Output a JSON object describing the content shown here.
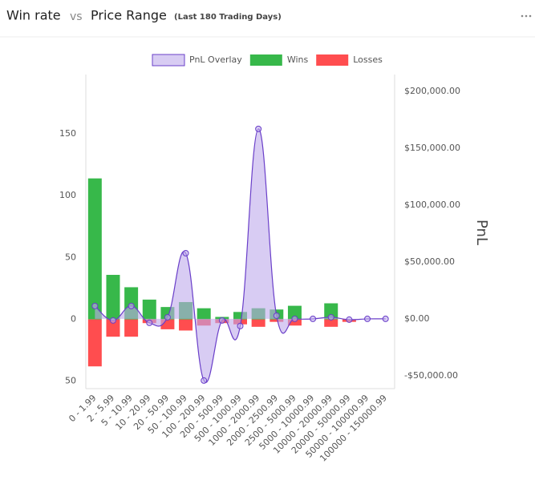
{
  "chart_data": {
    "type": "bar",
    "title": "Win rate",
    "title_vs": "vs",
    "title_topic": "Price Range",
    "subtitle": "(Last 180 Trading Days)",
    "y2_label": "PnL",
    "categories": [
      "0 - 1.99",
      "2 - 5.99",
      "5 - 10.99",
      "10 - 20.99",
      "20 - 50.99",
      "50 - 100.99",
      "100 - 200.99",
      "200 - 500.99",
      "500 - 1000.99",
      "1000 - 2000.99",
      "2000 - 2500.99",
      "2500 - 5000.99",
      "5000 - 10000.99",
      "10000 - 20000.99",
      "20000 - 50000.99",
      "50000 - 100000.99",
      "100000 - 150000.99"
    ],
    "series": [
      {
        "name": "PnL Overlay",
        "type": "line",
        "axis": "y2",
        "color": "#6a3fc9",
        "fill": "rgba(190,170,235,0.6)",
        "values": [
          11300,
          -1400,
          11300,
          -3500,
          1400,
          57700,
          -54200,
          -1400,
          -6300,
          166900,
          2800,
          0,
          0,
          1400,
          -700,
          0,
          0
        ]
      },
      {
        "name": "Wins",
        "color": "#37b84a",
        "values": [
          114,
          36,
          26,
          16,
          10,
          14,
          9,
          2,
          6,
          9,
          8,
          11,
          0,
          13,
          0,
          0,
          0
        ]
      },
      {
        "name": "Losses",
        "color": "#ff4d4f",
        "values": [
          -38,
          -14,
          -14,
          -3,
          -8,
          -9,
          -5,
          -3,
          -4,
          -6,
          -2,
          -5,
          0,
          -6,
          -2,
          0,
          0
        ]
      }
    ],
    "ylim": [
      -56,
      198
    ],
    "yticks": [
      {
        "value": -50,
        "label": "50"
      },
      0,
      50,
      100,
      150
    ],
    "y2lim": [
      -61300,
      214700
    ],
    "y2ticks": [
      {
        "value": -50000,
        "label": "-$50,000.00"
      },
      {
        "value": 0,
        "label": "$0.00"
      },
      {
        "value": 50000,
        "label": "$50,000.00"
      },
      {
        "value": 100000,
        "label": "$100,000.00"
      },
      {
        "value": 150000,
        "label": "$150,000.00"
      },
      {
        "value": 200000,
        "label": "$200,000.00"
      }
    ],
    "grid": false,
    "legend": "top"
  }
}
